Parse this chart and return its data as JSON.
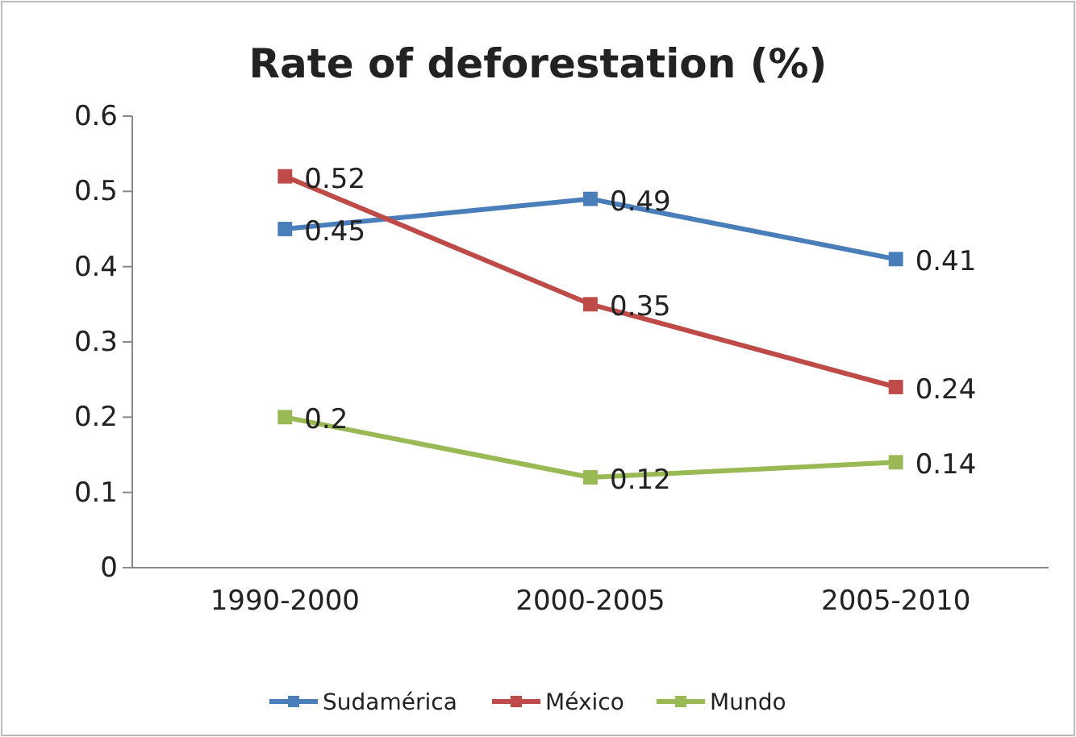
{
  "chart_data": {
    "type": "line",
    "title": "Rate  of deforestation (%)",
    "categories": [
      "1990-2000",
      "2000-2005",
      "2005-2010"
    ],
    "series": [
      {
        "name": "Sudamérica",
        "color": "#4a7ebb",
        "values": [
          0.45,
          0.49,
          0.41
        ]
      },
      {
        "name": "México",
        "color": "#be4b48",
        "values": [
          0.52,
          0.35,
          0.24
        ]
      },
      {
        "name": "Mundo",
        "color": "#98b954",
        "values": [
          0.2,
          0.12,
          0.14
        ]
      }
    ],
    "ylim": [
      0,
      0.6
    ],
    "yticks": [
      0,
      0.1,
      0.2,
      0.3,
      0.4,
      0.5,
      0.6
    ],
    "grid": false,
    "legend": "bottom",
    "marker": "square",
    "line_style": "solid",
    "data_labels": true
  }
}
